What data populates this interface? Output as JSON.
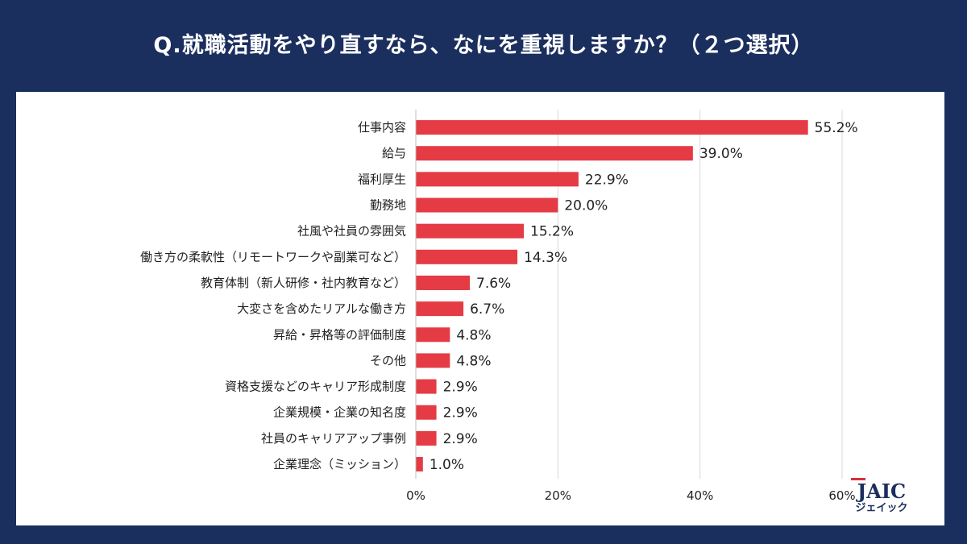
{
  "title": "Q.就職活動をやり直すなら、なにを重視しますか？（２つ選択）",
  "logo": {
    "text": "JAIC",
    "subtext": "ジェイック"
  },
  "colors": {
    "background": "#1b2f5e",
    "bar": "#e43b45",
    "panel": "#ffffff",
    "grid": "#d9d9d9"
  },
  "chart_data": {
    "type": "bar",
    "orientation": "horizontal",
    "categories": [
      "仕事内容",
      "給与",
      "福利厚生",
      "勤務地",
      "社風や社員の雰囲気",
      "働き方の柔軟性（リモートワークや副業可など）",
      "教育体制（新人研修・社内教育など）",
      "大変さを含めたリアルな働き方",
      "昇給・昇格等の評価制度",
      "その他",
      "資格支援などのキャリア形成制度",
      "企業規模・企業の知名度",
      "社員のキャリアアップ事例",
      "企業理念（ミッション）"
    ],
    "values": [
      55.2,
      39.0,
      22.9,
      20.0,
      15.2,
      14.3,
      7.6,
      6.7,
      4.8,
      4.8,
      2.9,
      2.9,
      2.9,
      1.0
    ],
    "value_labels": [
      "55.2%",
      "39.0%",
      "22.9%",
      "20.0%",
      "15.2%",
      "14.3%",
      "7.6%",
      "6.7%",
      "4.8%",
      "4.8%",
      "2.9%",
      "2.9%",
      "2.9%",
      "1.0%"
    ],
    "xlim": [
      0,
      60
    ],
    "xticks": [
      0,
      20,
      40,
      60
    ],
    "xtick_labels": [
      "0%",
      "20%",
      "40%",
      "60%"
    ],
    "grid": true
  }
}
